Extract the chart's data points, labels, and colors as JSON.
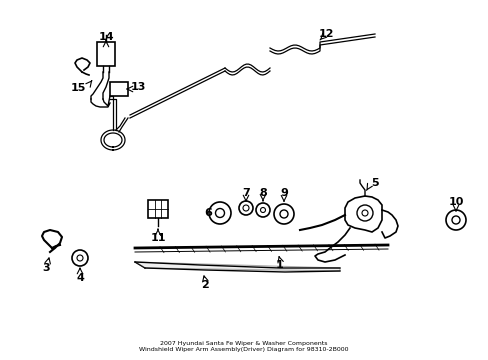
{
  "bg_color": "#ffffff",
  "line_color": "#000000",
  "figsize": [
    4.89,
    3.6
  ],
  "dpi": 100,
  "title": "2007 Hyundai Santa Fe Wiper & Washer Components\nWindshield Wiper Arm Assembly(Driver) Diagram for 98310-2B000"
}
